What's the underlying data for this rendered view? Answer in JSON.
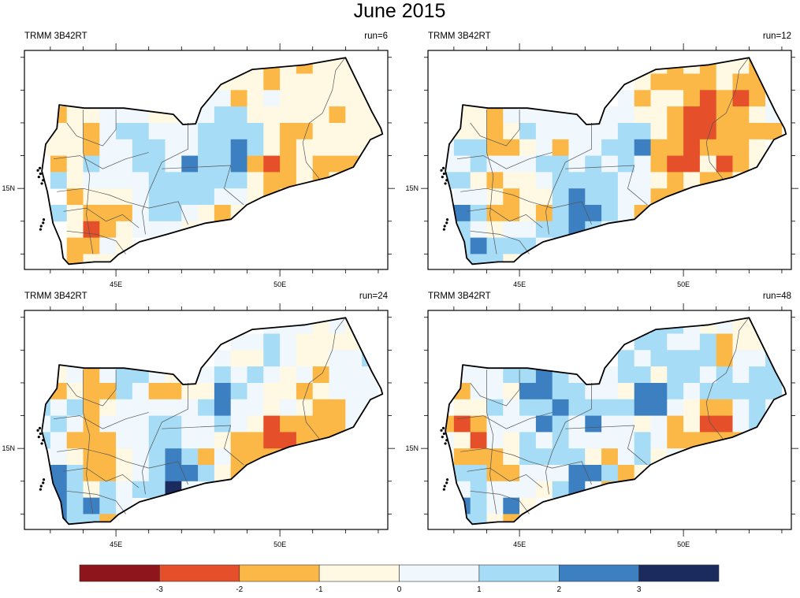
{
  "title": "June 2015",
  "map": {
    "lon_range": [
      42.21,
      53.29
    ],
    "lat_range": [
      12.52,
      19.21
    ],
    "x_ticks": [
      43,
      44,
      45,
      46,
      47,
      48,
      49,
      50,
      51,
      52,
      53
    ],
    "y_ticks": [
      13,
      14,
      15,
      16,
      17,
      18,
      19
    ],
    "x_tick_labels": [
      {
        "lon": 45,
        "label": "45E"
      },
      {
        "lon": 50,
        "label": "50E"
      }
    ],
    "y_tick_labels": [
      {
        "lat": 15,
        "label": "15N"
      }
    ],
    "grid_origin": {
      "lon": 42.5,
      "lat": 19.0
    },
    "grid_resolution_deg": 0.5,
    "country_outline": [
      [
        43.27,
        17.55
      ],
      [
        44.04,
        17.45
      ],
      [
        45.24,
        17.45
      ],
      [
        46.75,
        17.26
      ],
      [
        47.04,
        16.95
      ],
      [
        47.43,
        16.97
      ],
      [
        47.6,
        17.45
      ],
      [
        48.2,
        18.17
      ],
      [
        49.16,
        18.63
      ],
      [
        50.77,
        18.77
      ],
      [
        52.0,
        18.99
      ],
      [
        52.81,
        17.33
      ],
      [
        53.08,
        16.83
      ],
      [
        53.13,
        16.66
      ],
      [
        52.76,
        16.49
      ],
      [
        52.24,
        15.65
      ],
      [
        51.49,
        15.34
      ],
      [
        50.29,
        15.05
      ],
      [
        49.47,
        14.74
      ],
      [
        48.99,
        14.5
      ],
      [
        48.51,
        14.06
      ],
      [
        47.72,
        13.94
      ],
      [
        46.59,
        13.61
      ],
      [
        45.72,
        13.37
      ],
      [
        45.07,
        12.98
      ],
      [
        44.83,
        12.76
      ],
      [
        44.35,
        12.76
      ],
      [
        43.56,
        12.69
      ],
      [
        43.39,
        12.88
      ],
      [
        43.32,
        13.37
      ],
      [
        43.08,
        13.94
      ],
      [
        42.91,
        14.9
      ],
      [
        42.74,
        15.53
      ],
      [
        42.86,
        16.35
      ],
      [
        43.2,
        16.83
      ]
    ]
  },
  "legend": {
    "colors": [
      "#8e161b",
      "#e5502a",
      "#fbb846",
      "#fff8e3",
      "#f0f8fd",
      "#a6dcf6",
      "#3d80c2",
      "#1b2b5e"
    ],
    "labels": [
      "-3",
      "-2",
      "-1",
      "0",
      "1",
      "2",
      "3"
    ],
    "category_codes": [
      "X",
      "R",
      "O",
      "y",
      "w",
      "b",
      "B",
      "N"
    ]
  },
  "panels": [
    {
      "left_label": "TRMM 3B42RT",
      "right_label": "run=6",
      "grid": [
        ".............yOyOyyyy.",
        "...........yyyOyyyyyy.",
        "..........wwOywyyyyyy.",
        "yOyywwwyywwbbyyyyyOyy.",
        "yyyOwbbwwwbbbbyOOyyyyy",
        "yyyOwwbbwwbbBbyOyyyyyy",
        ".OybwwbbwBbbBOROyOOOO.",
        ".bywwwwbbbbbbyOOyOyy..",
        "..OyyywbbbbwwyOy......",
        ".byOOOwbbwyOy.........",
        "..yROywwwy............",
        "..OOwy................",
        "..Oyy................."
      ]
    },
    {
      "left_label": "TRMM 3B42RT",
      "right_label": "run=12",
      "grid": [
        ".............yOyOyyOy.",
        "............yOOOOyOOy.",
        "...........wOyyOROROw.",
        "yyyOwwwwwwwwyyORROOyw.",
        "yyyOybwwwwwbbyORROOOO.",
        "wbbOOywOwwbbBOOROOOy..",
        "wwbwwwbbwbwbwORRyROy..",
        "bbyOyywbbbbwwyOyOOy...",
        ".wwyOyybBbbwwOOO......",
        ".BbOOyObBBbwO.........",
        ".bwywwbbBbw...........",
        ".bBbbbw...............",
        ".bbby................."
      ]
    },
    {
      "left_label": "TRMM 3B42RT",
      "right_label": "run=24",
      "grid": [
        "..............wwwywy..",
        "............wwbwyyyy..",
        "...........wyybwyywwb.",
        ".ywOwbbwywwbwbwywOwww.",
        "yOyOObwOOyyBbwyyOywww.",
        "bwbOywwwwwbBwwywyOOww.",
        "wbwOwwwbbwwbwyROOOOw..",
        "bwOOOwwbbwwyOORROOO...",
        ".wyOOywbBbOwOOO.......",
        ".BbOOywbBBbyO.........",
        ".BbybwbbNw............",
        ".BbBbw................",
        ".BbbO................."
      ]
    },
    {
      "left_label": "TRMM 3B42RT",
      "right_label": "run=48",
      "grid": [
        ".............bbwywyy..",
        "............bbwwbOyyw.",
        "...........bwbbbbOwwb.",
        ".wwwbbBbwwwbbybbwbwbb.",
        ".OwwyBBbbwwyBBbwbbbbb.",
        ".yybwbbBbbbbBBwyOOwbw.",
        "OROwwwBbwBwwywOyRRwb..",
        "wyRwybwbwwwwbwOOOOO...",
        "wOOOybbbbyOwbywy......",
        ".bbOOwwwBBbOy.........",
        ".wbwwwybBwO...........",
        ".BbwBy................",
        ".bbyO................."
      ]
    }
  ]
}
